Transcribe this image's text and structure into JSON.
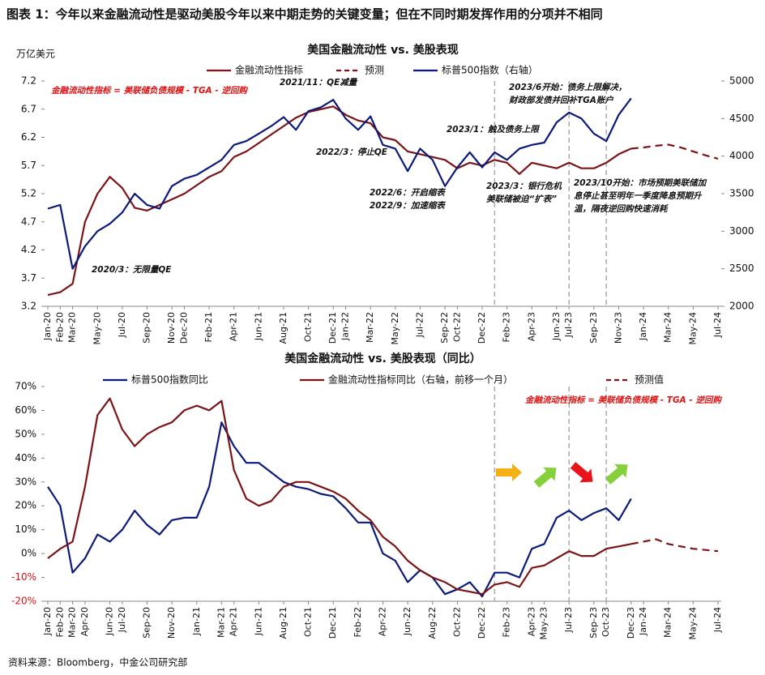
{
  "title": "图表 1：今年以来金融流动性是驱动美股今年以来中期走势的关键变量；但在不同时期发挥作用的分项并不相同",
  "source": "资料来源：Bloomberg，中金公司研究部",
  "chart_data": [
    {
      "type": "line",
      "title": "美国金融流动性 vs. 美股表现",
      "y_unit": "万亿美元",
      "x": [
        "Jan-20",
        "Feb-20",
        "Mar-20",
        "Apr-20",
        "May-20",
        "Jun-20",
        "Jul-20",
        "Aug-20",
        "Sep-20",
        "Oct-20",
        "Nov-20",
        "Dec-20",
        "Jan-21",
        "Feb-21",
        "Mar-21",
        "Apr-21",
        "May-21",
        "Jun-21",
        "Jul-21",
        "Aug-21",
        "Sep-21",
        "Oct-21",
        "Nov-21",
        "Dec-21",
        "Jan-22",
        "Feb-22",
        "Mar-22",
        "Apr-22",
        "May-22",
        "Jun-22",
        "Jul-22",
        "Aug-22",
        "Sep-22",
        "Oct-22",
        "Nov-22",
        "Dec-22",
        "Jan-23",
        "Feb-23",
        "Mar-23",
        "Apr-23",
        "May-23",
        "Jun-23",
        "Jul-23",
        "Aug-23",
        "Sep-23",
        "Oct-23",
        "Nov-23",
        "Dec-23",
        "Jan-24",
        "Feb-24",
        "Mar-24",
        "Apr-24",
        "May-24",
        "Jun-24",
        "Jul-24"
      ],
      "xticks": [
        "Jan-20",
        "Feb-20",
        "Mar-20",
        "May-20",
        "Jul-20",
        "Sep-20",
        "Nov-20",
        "Dec-20",
        "Feb-21",
        "Apr-21",
        "Jun-21",
        "Aug-21",
        "Oct-21",
        "Dec-21",
        "Jan-22",
        "Mar-22",
        "May-22",
        "Jul-22",
        "Sep-22",
        "Oct-22",
        "Dec-22",
        "Feb-23",
        "Apr-23",
        "Jun-23",
        "Jul-23",
        "Sep-23",
        "Nov-23",
        "Jan-24",
        "Mar-24",
        "May-24",
        "Jul-24"
      ],
      "ylim": [
        3.2,
        7.2
      ],
      "yticks": [
        3.2,
        3.7,
        4.2,
        4.7,
        5.2,
        5.7,
        6.2,
        6.7,
        7.2
      ],
      "y2lim": [
        2000,
        5000
      ],
      "y2ticks": [
        2000,
        2500,
        3000,
        3500,
        4000,
        4500,
        5000
      ],
      "vlines": [
        "Jan-23",
        "Jul-23",
        "Oct-23"
      ],
      "series": [
        {
          "name": "金融流动性指标",
          "color": "#7b1416",
          "values": [
            3.4,
            3.45,
            3.6,
            4.7,
            5.2,
            5.5,
            5.3,
            4.95,
            4.9,
            5.0,
            5.1,
            5.2,
            5.35,
            5.5,
            5.6,
            5.85,
            5.95,
            6.1,
            6.25,
            6.4,
            6.55,
            6.65,
            6.7,
            6.75,
            6.6,
            6.5,
            6.45,
            6.2,
            6.15,
            5.95,
            5.9,
            5.85,
            5.8,
            5.65,
            5.75,
            5.7,
            5.8,
            5.75,
            5.55,
            5.75,
            5.7,
            5.65,
            5.75,
            5.65,
            5.65,
            5.75,
            5.9,
            6.0,
            null,
            null,
            null,
            null,
            null,
            null,
            null
          ]
        },
        {
          "name": "预测",
          "color": "#7b1416",
          "style": "dashed",
          "values": [
            null,
            null,
            null,
            null,
            null,
            null,
            null,
            null,
            null,
            null,
            null,
            null,
            null,
            null,
            null,
            null,
            null,
            null,
            null,
            null,
            null,
            null,
            null,
            null,
            null,
            null,
            null,
            null,
            null,
            null,
            null,
            null,
            null,
            null,
            null,
            null,
            null,
            null,
            null,
            null,
            null,
            null,
            null,
            null,
            null,
            null,
            null,
            6.0,
            6.02,
            6.05,
            6.07,
            6.02,
            5.95,
            5.88,
            5.82
          ]
        },
        {
          "name": "标普500指数（右轴）",
          "color": "#0c1a7a",
          "axis": "y2",
          "values": [
            3300,
            3350,
            2500,
            2800,
            3000,
            3100,
            3250,
            3500,
            3350,
            3300,
            3600,
            3700,
            3750,
            3850,
            3950,
            4150,
            4200,
            4300,
            4400,
            4520,
            4350,
            4600,
            4650,
            4750,
            4500,
            4350,
            4530,
            4150,
            4100,
            3800,
            4100,
            3950,
            3600,
            3850,
            4050,
            3850,
            4050,
            3950,
            4100,
            4150,
            4180,
            4450,
            4580,
            4500,
            4300,
            4200,
            4550,
            4770,
            null,
            null,
            null,
            null,
            null,
            null,
            null
          ]
        }
      ],
      "annotations": [
        {
          "text": [
            "金融流动性指标 = 美联储负债规模 - TGA - 逆回购"
          ],
          "color": "#e01010"
        },
        {
          "text": [
            "2021/11：QE减量"
          ],
          "color": "#111111"
        },
        {
          "text": [
            "2022/3：停止QE"
          ],
          "color": "#111111"
        },
        {
          "text": [
            "2020/3：无限量QE"
          ],
          "color": "#111111"
        },
        {
          "text": [
            "2022/6：开启缩表",
            "2022/9：加速缩表"
          ],
          "color": "#111111"
        },
        {
          "text": [
            "2023/1：触及债务上限"
          ],
          "color": "#111111"
        },
        {
          "text": [
            "2023/3：银行危机",
            "美联储被迫“扩表”"
          ],
          "color": "#111111"
        },
        {
          "text": [
            "2023/6开始：债务上限解决，",
            "财政部发债并回补TGA账户"
          ],
          "color": "#111111"
        },
        {
          "text": [
            "2023/10开始：市场预期美联储加",
            "息停止甚至明年一季度降息预期升",
            "温，隔夜逆回购快速消耗"
          ],
          "color": "#111111"
        }
      ]
    },
    {
      "type": "line",
      "title": "美国金融流动性 vs. 美股表现（同比）",
      "x": [
        "Jan-20",
        "Feb-20",
        "Mar-20",
        "Apr-20",
        "May-20",
        "Jun-20",
        "Jul-20",
        "Aug-20",
        "Sep-20",
        "Oct-20",
        "Nov-20",
        "Dec-20",
        "Jan-21",
        "Feb-21",
        "Mar-21",
        "Apr-21",
        "May-21",
        "Jun-21",
        "Jul-21",
        "Aug-21",
        "Sep-21",
        "Oct-21",
        "Nov-21",
        "Dec-21",
        "Jan-22",
        "Feb-22",
        "Mar-22",
        "Apr-22",
        "May-22",
        "Jun-22",
        "Jul-22",
        "Aug-22",
        "Sep-22",
        "Oct-22",
        "Nov-22",
        "Dec-22",
        "Jan-23",
        "Feb-23",
        "Mar-23",
        "Apr-23",
        "May-23",
        "Jun-23",
        "Jul-23",
        "Aug-23",
        "Sep-23",
        "Oct-23",
        "Nov-23",
        "Dec-23",
        "Jan-24",
        "Feb-24",
        "Mar-24",
        "Apr-24",
        "May-24",
        "Jun-24",
        "Jul-24"
      ],
      "xticks": [
        "Jan-20",
        "Feb-20",
        "Mar-20",
        "Apr-20",
        "Jun-20",
        "Jul-20",
        "Sep-20",
        "Nov-20",
        "Jan-21",
        "Mar-21",
        "Apr-21",
        "Jun-21",
        "Aug-21",
        "Oct-21",
        "Dec-21",
        "Feb-22",
        "Apr-22",
        "Jun-22",
        "Aug-22",
        "Oct-22",
        "Dec-22",
        "Feb-23",
        "Apr-23",
        "May-23",
        "Jul-23",
        "Sep-23",
        "Oct-23",
        "Dec-23",
        "Jan-24",
        "Mar-24",
        "May-24",
        "Jul-24"
      ],
      "ylim": [
        -20,
        70
      ],
      "yticks": [
        {
          "value": -20,
          "label": "-20%"
        },
        {
          "value": -10,
          "label": "-10%"
        },
        {
          "value": 0,
          "label": "0%"
        },
        {
          "value": 10,
          "label": "10%"
        },
        {
          "value": 20,
          "label": "20%"
        },
        {
          "value": 30,
          "label": "30%"
        },
        {
          "value": 40,
          "label": "40%"
        },
        {
          "value": 50,
          "label": "50%"
        },
        {
          "value": 60,
          "label": "60%"
        },
        {
          "value": 70,
          "label": "70%"
        }
      ],
      "vlines": [
        "Jan-23",
        "Jul-23",
        "Oct-23"
      ],
      "series": [
        {
          "name": "标普500指数同比",
          "color": "#0c1a7a",
          "values": [
            28,
            20,
            -8,
            -2,
            8,
            5,
            10,
            18,
            12,
            8,
            14,
            15,
            15,
            28,
            55,
            45,
            38,
            38,
            34,
            30,
            28,
            27,
            25,
            24,
            19,
            13,
            13,
            0,
            -3,
            -12,
            -7,
            -10,
            -17,
            -15,
            -12,
            -18,
            -8,
            -8,
            -10,
            2,
            4,
            15,
            18,
            14,
            17,
            19,
            14,
            23,
            null,
            null,
            null,
            null,
            null,
            null,
            null
          ]
        },
        {
          "name": "金融流动性指标同比（右轴，前移一个月）",
          "color": "#7b1416",
          "values": [
            -2,
            2,
            5,
            28,
            58,
            65,
            52,
            45,
            50,
            53,
            55,
            60,
            62,
            60,
            64,
            35,
            23,
            20,
            22,
            28,
            30,
            30,
            28,
            26,
            23,
            18,
            14,
            7,
            3,
            -3,
            -7,
            -10,
            -12,
            -15,
            -16,
            -17,
            -13,
            -12,
            -14,
            -6,
            -5,
            -2,
            1,
            -1,
            -1,
            2,
            3,
            4,
            null,
            null,
            null,
            null,
            null,
            null,
            null
          ]
        },
        {
          "name": "预测值",
          "color": "#7b1416",
          "style": "dashed",
          "values": [
            null,
            null,
            null,
            null,
            null,
            null,
            null,
            null,
            null,
            null,
            null,
            null,
            null,
            null,
            null,
            null,
            null,
            null,
            null,
            null,
            null,
            null,
            null,
            null,
            null,
            null,
            null,
            null,
            null,
            null,
            null,
            null,
            null,
            null,
            null,
            null,
            null,
            null,
            null,
            null,
            null,
            null,
            null,
            null,
            null,
            null,
            null,
            4,
            5,
            6,
            4,
            3,
            2,
            1.5,
            1
          ]
        }
      ],
      "annotations": [
        {
          "text": [
            "金融流动性指标 = 美联储负债规模 - TGA - 逆回购"
          ],
          "color": "#e01010"
        }
      ]
    }
  ]
}
